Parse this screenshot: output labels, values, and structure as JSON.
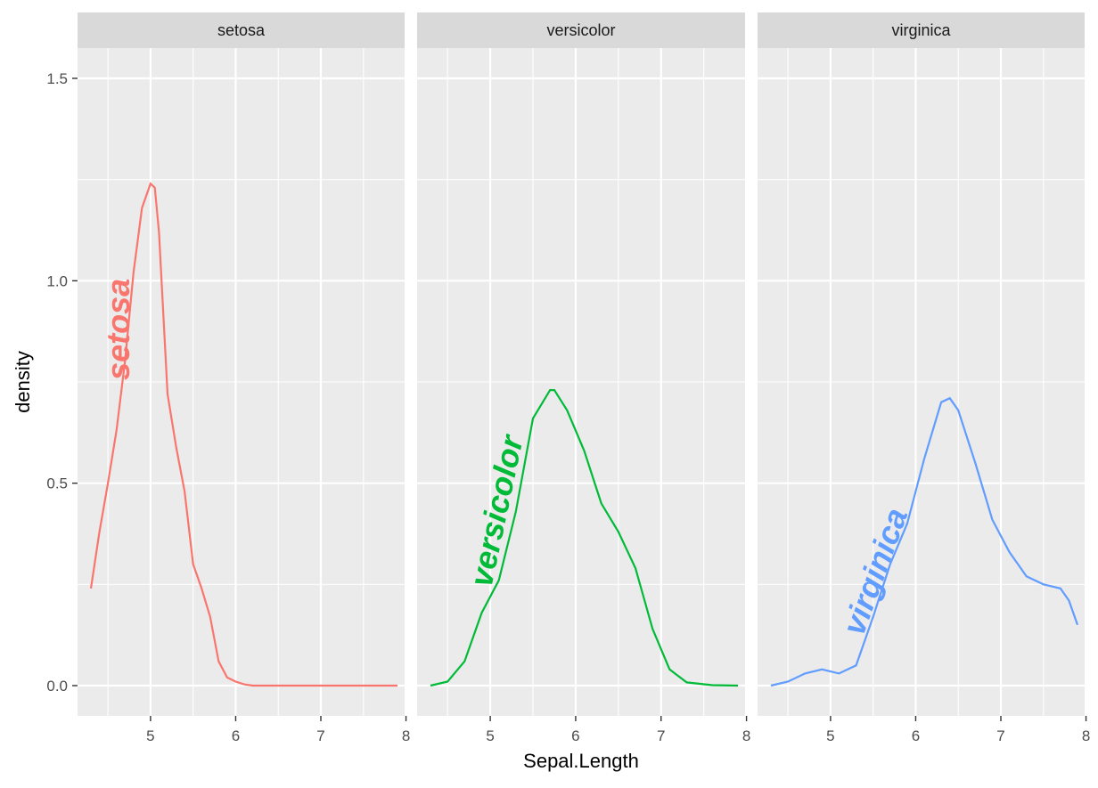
{
  "chart_data": {
    "type": "line",
    "facet_variable": "Species",
    "xlabel": "Sepal.Length",
    "ylabel": "density",
    "xlim": [
      4.3,
      7.9
    ],
    "ylim": [
      0,
      1.55
    ],
    "x_ticks": [
      5,
      6,
      7,
      8
    ],
    "y_ticks": [
      0.0,
      0.5,
      1.0,
      1.5
    ],
    "y_tick_labels": [
      "0.0",
      "0.5",
      "1.0",
      "1.5"
    ],
    "grid": true,
    "legend": "none",
    "panels": [
      {
        "strip": "setosa",
        "color": "#F8766D",
        "label": "setosa",
        "label_x": 4.65,
        "label_y": 0.88,
        "label_angle": -90,
        "x": [
          4.3,
          4.4,
          4.5,
          4.6,
          4.7,
          4.8,
          4.9,
          5.0,
          5.05,
          5.1,
          5.2,
          5.3,
          5.4,
          5.5,
          5.6,
          5.7,
          5.8,
          5.9,
          6.0,
          6.1,
          6.2,
          6.5,
          7.0,
          7.5,
          7.9
        ],
        "y": [
          0.24,
          0.38,
          0.5,
          0.63,
          0.8,
          1.02,
          1.18,
          1.24,
          1.23,
          1.12,
          0.72,
          0.59,
          0.48,
          0.3,
          0.24,
          0.17,
          0.06,
          0.02,
          0.01,
          0.003,
          0.0,
          0.0,
          0.0,
          0.0,
          0.0
        ]
      },
      {
        "strip": "versicolor",
        "color": "#00BA38",
        "label": "versicolor",
        "label_x": 5.1,
        "label_y": 0.43,
        "label_angle": -78,
        "x": [
          4.3,
          4.5,
          4.7,
          4.9,
          5.1,
          5.3,
          5.5,
          5.7,
          5.75,
          5.9,
          6.1,
          6.3,
          6.5,
          6.7,
          6.9,
          7.1,
          7.3,
          7.6,
          7.9
        ],
        "y": [
          0.0,
          0.01,
          0.06,
          0.18,
          0.26,
          0.43,
          0.66,
          0.73,
          0.73,
          0.68,
          0.58,
          0.45,
          0.38,
          0.29,
          0.14,
          0.04,
          0.008,
          0.001,
          0.0
        ]
      },
      {
        "strip": "virginica",
        "color": "#619CFF",
        "label": "virginica",
        "label_x": 5.55,
        "label_y": 0.28,
        "label_angle": -70,
        "x": [
          4.3,
          4.5,
          4.7,
          4.9,
          5.1,
          5.3,
          5.5,
          5.7,
          5.9,
          6.1,
          6.3,
          6.4,
          6.5,
          6.7,
          6.9,
          7.1,
          7.3,
          7.5,
          7.7,
          7.8,
          7.9
        ],
        "y": [
          0.0,
          0.01,
          0.03,
          0.04,
          0.03,
          0.05,
          0.17,
          0.3,
          0.4,
          0.56,
          0.7,
          0.71,
          0.68,
          0.55,
          0.41,
          0.33,
          0.27,
          0.25,
          0.24,
          0.21,
          0.15
        ]
      }
    ]
  }
}
